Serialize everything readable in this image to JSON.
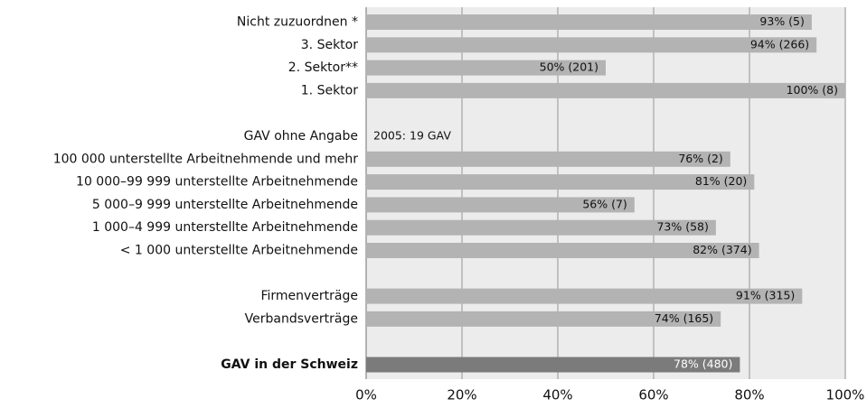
{
  "chart_data": {
    "type": "barh",
    "categories": [
      "Nicht zuzuordnen *",
      "3. Sektor",
      "2. Sektor**",
      "1. Sektor",
      null,
      "GAV ohne Angabe",
      "100 000 unterstellte Arbeitnehmende und mehr",
      "10 000–99 999 unterstellte Arbeitnehmende",
      "5 000–9 999 unterstellte Arbeitnehmende",
      "1 000–4 999 unterstellte Arbeitnehmende",
      "< 1 000 unterstellte Arbeitnehmende",
      null,
      "Firmenverträge",
      "Verbandsverträge",
      null,
      "GAV in der Schweiz"
    ],
    "values": [
      93,
      94,
      50,
      100,
      null,
      null,
      76,
      81,
      56,
      73,
      82,
      null,
      91,
      74,
      null,
      78
    ],
    "value_labels": [
      "93% (5)",
      "94% (266)",
      "50% (201)",
      "100% (8)",
      null,
      null,
      "76% (2)",
      "81% (20)",
      "56% (7)",
      "73% (58)",
      "82% (374)",
      null,
      "91% (315)",
      "74% (165)",
      null,
      "78% (480)"
    ],
    "colors": [
      "#b3b3b3",
      "#b3b3b3",
      "#b3b3b3",
      "#b3b3b3",
      null,
      null,
      "#b3b3b3",
      "#b3b3b3",
      "#b3b3b3",
      "#b3b3b3",
      "#b3b3b3",
      null,
      "#b3b3b3",
      "#b3b3b3",
      null,
      "#7b7b7b"
    ],
    "annotations": [
      {
        "category": "GAV ohne Angabe",
        "text": "2005: 19 GAV"
      }
    ],
    "xlim": [
      0,
      100
    ],
    "xticks": [
      {
        "value": 0,
        "label": "0%"
      },
      {
        "value": 20,
        "label": "20%"
      },
      {
        "value": 40,
        "label": "40%"
      },
      {
        "value": 60,
        "label": "60%"
      },
      {
        "value": 80,
        "label": "80%"
      },
      {
        "value": 100,
        "label": "100%"
      }
    ],
    "grid": true
  }
}
